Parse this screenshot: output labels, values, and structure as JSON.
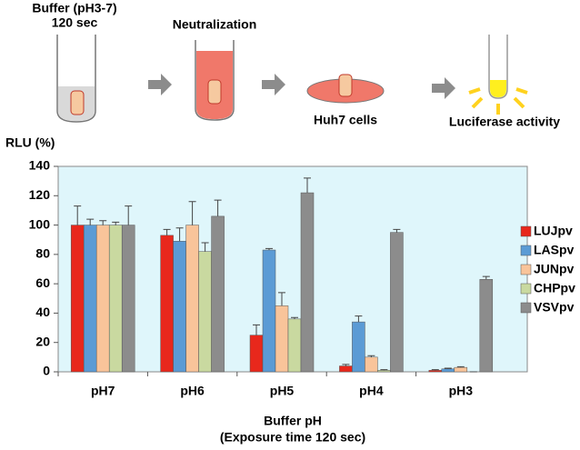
{
  "chart_data": {
    "type": "bar",
    "annotations": [
      "Buffer (pH3-7)",
      "120 sec",
      "Neutralization",
      "Huh7 cells",
      "Luciferase activity"
    ],
    "ylabel": "RLU (%)",
    "xlabel": [
      "Buffer pH",
      "(Exposure time 120 sec)"
    ],
    "categories": [
      "pH7",
      "pH6",
      "pH5",
      "pH4",
      "pH3"
    ],
    "series": [
      {
        "name": "LUJpv",
        "color": "#e8281c",
        "values": [
          100,
          93,
          25,
          4,
          1
        ],
        "errors": [
          13,
          4,
          7,
          1,
          0.5
        ]
      },
      {
        "name": "LASpv",
        "color": "#5b9bd5",
        "values": [
          100,
          89,
          83,
          34,
          2
        ],
        "errors": [
          4,
          9,
          1,
          4,
          0.5
        ]
      },
      {
        "name": "JUNpv",
        "color": "#f9c49a",
        "values": [
          100,
          100,
          45,
          10,
          3
        ],
        "errors": [
          3,
          16,
          9,
          1,
          0.5
        ]
      },
      {
        "name": "CHPpv",
        "color": "#c9d9a0",
        "values": [
          100,
          82,
          36,
          1,
          0
        ],
        "errors": [
          2,
          6,
          1,
          0.5,
          0
        ]
      },
      {
        "name": "VSVpv",
        "color": "#8c8c8c",
        "values": [
          100,
          106,
          122,
          95,
          63
        ],
        "errors": [
          13,
          11,
          10,
          2,
          2
        ]
      }
    ],
    "ylim": [
      0,
      140
    ],
    "yticks": [
      0,
      20,
      40,
      60,
      80,
      100,
      120,
      140
    ],
    "legend": "right"
  }
}
